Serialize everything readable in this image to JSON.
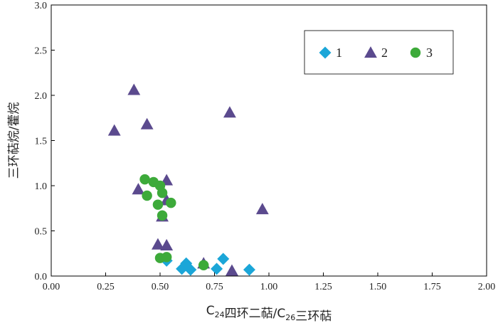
{
  "chart_data": {
    "type": "scatter",
    "xlabel": "C24四环二萜/C26三环萜",
    "ylabel": "三环萜烷/藿烷",
    "xlim": [
      0,
      2.0
    ],
    "ylim": [
      0,
      3.0
    ],
    "x_ticks": [
      "0.00",
      "0.25",
      "0.50",
      "0.75",
      "1.00",
      "1.25",
      "1.50",
      "1.75",
      "2.00"
    ],
    "y_ticks": [
      "0.0",
      "0.5",
      "1.0",
      "1.5",
      "2.0",
      "2.5",
      "3.0"
    ],
    "grid": false,
    "legend_position": "top-right",
    "series": [
      {
        "name": "1",
        "marker": "diamond",
        "color": "#1BA6D8",
        "points": [
          {
            "x": 0.53,
            "y": 0.17
          },
          {
            "x": 0.6,
            "y": 0.08
          },
          {
            "x": 0.62,
            "y": 0.14
          },
          {
            "x": 0.64,
            "y": 0.07
          },
          {
            "x": 0.76,
            "y": 0.08
          },
          {
            "x": 0.79,
            "y": 0.19
          },
          {
            "x": 0.91,
            "y": 0.07
          }
        ]
      },
      {
        "name": "2",
        "marker": "triangle",
        "color": "#5B4A8E",
        "points": [
          {
            "x": 0.29,
            "y": 1.61
          },
          {
            "x": 0.38,
            "y": 2.06
          },
          {
            "x": 0.4,
            "y": 0.96
          },
          {
            "x": 0.44,
            "y": 1.68
          },
          {
            "x": 0.49,
            "y": 0.35
          },
          {
            "x": 0.51,
            "y": 0.66
          },
          {
            "x": 0.53,
            "y": 1.06
          },
          {
            "x": 0.53,
            "y": 0.34
          },
          {
            "x": 0.53,
            "y": 0.84
          },
          {
            "x": 0.7,
            "y": 0.14
          },
          {
            "x": 0.82,
            "y": 1.81
          },
          {
            "x": 0.83,
            "y": 0.06
          },
          {
            "x": 0.97,
            "y": 0.74
          }
        ]
      },
      {
        "name": "3",
        "marker": "circle",
        "color": "#3DAA3A",
        "points": [
          {
            "x": 0.43,
            "y": 1.07
          },
          {
            "x": 0.44,
            "y": 0.89
          },
          {
            "x": 0.47,
            "y": 1.04
          },
          {
            "x": 0.49,
            "y": 0.79
          },
          {
            "x": 0.5,
            "y": 1.0
          },
          {
            "x": 0.51,
            "y": 0.92
          },
          {
            "x": 0.51,
            "y": 0.67
          },
          {
            "x": 0.5,
            "y": 0.2
          },
          {
            "x": 0.53,
            "y": 0.21
          },
          {
            "x": 0.55,
            "y": 0.81
          },
          {
            "x": 0.7,
            "y": 0.12
          }
        ]
      }
    ]
  }
}
